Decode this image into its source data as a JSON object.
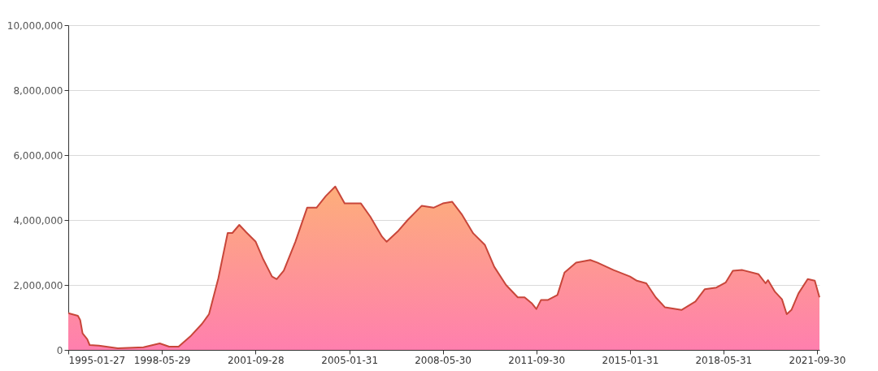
{
  "chart_data": {
    "type": "area",
    "x": [
      "1995-01-27",
      "1995-06",
      "1995-07",
      "1995-08",
      "1995-10",
      "1995-11",
      "1996-03",
      "1996-11",
      "1997-10",
      "1998-05",
      "1998-09",
      "1999-01",
      "1999-06",
      "1999-11",
      "2000-02",
      "2000-06",
      "2000-10",
      "2000-12",
      "2001-03",
      "2001-06",
      "2001-10",
      "2002-01",
      "2002-05",
      "2002-07",
      "2002-10",
      "2003-03",
      "2003-08",
      "2003-12",
      "2004-04",
      "2004-08",
      "2004-12",
      "2005-07",
      "2005-11",
      "2006-04",
      "2006-06",
      "2006-11",
      "2007-03",
      "2007-09",
      "2008-02",
      "2008-06",
      "2008-10",
      "2009-02",
      "2009-07",
      "2009-12",
      "2010-04",
      "2010-09",
      "2011-02",
      "2011-05",
      "2011-08",
      "2011-10",
      "2011-12",
      "2012-03",
      "2012-07",
      "2012-10",
      "2013-03",
      "2013-09",
      "2013-12",
      "2014-07",
      "2015-02",
      "2015-05",
      "2015-09",
      "2016-01",
      "2016-05",
      "2016-12",
      "2017-06",
      "2017-10",
      "2018-03",
      "2018-07",
      "2018-10",
      "2019-02",
      "2019-09",
      "2019-12",
      "2020-01",
      "2020-04",
      "2020-07",
      "2020-09",
      "2020-11",
      "2021-02",
      "2021-06",
      "2021-09",
      "2021-11"
    ],
    "series": [
      {
        "color": "#c8463a",
        "values": [
          1130000,
          1050000,
          920000,
          510000,
          330000,
          150000,
          130000,
          50000,
          80000,
          200000,
          100000,
          100000,
          410000,
          800000,
          1100000,
          2200000,
          3600000,
          3600000,
          3850000,
          3620000,
          3330000,
          2820000,
          2260000,
          2180000,
          2440000,
          3330000,
          4380000,
          4380000,
          4740000,
          5030000,
          4510000,
          4510000,
          4100000,
          3490000,
          3330000,
          3670000,
          4000000,
          4440000,
          4380000,
          4510000,
          4560000,
          4180000,
          3590000,
          3230000,
          2560000,
          2000000,
          1620000,
          1620000,
          1440000,
          1260000,
          1540000,
          1540000,
          1690000,
          2380000,
          2690000,
          2770000,
          2690000,
          2460000,
          2260000,
          2130000,
          2050000,
          1620000,
          1310000,
          1230000,
          1490000,
          1870000,
          1920000,
          2080000,
          2440000,
          2460000,
          2330000,
          2050000,
          2150000,
          1790000,
          1560000,
          1100000,
          1230000,
          1740000,
          2180000,
          2130000,
          1620000
        ]
      }
    ],
    "xlim": [
      "1995-01-27",
      "2021-11-01"
    ],
    "xticks": [
      "1995-01-27",
      "1998-05-29",
      "2001-09-28",
      "2005-01-31",
      "2008-05-30",
      "2011-09-30",
      "2015-01-31",
      "2018-05-31",
      "2021-09-30"
    ],
    "ylim": [
      0,
      10000000
    ],
    "yticks": [
      0,
      {
        "value": 2000000,
        "label": "2,000,000"
      },
      {
        "value": 4000000,
        "label": "4,000,000"
      },
      {
        "value": 6000000,
        "label": "6,000,000"
      },
      {
        "value": 8000000,
        "label": "8,000,000"
      },
      {
        "value": 10000000,
        "label": "10,000,000"
      }
    ],
    "grid": "y"
  }
}
